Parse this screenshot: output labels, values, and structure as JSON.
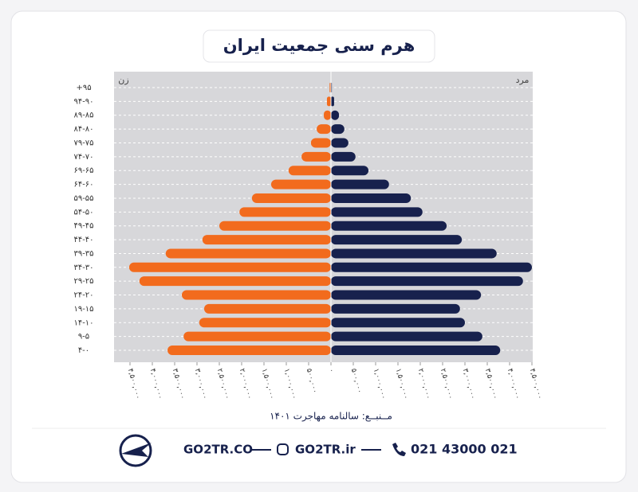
{
  "chart_data": {
    "type": "population-pyramid",
    "title": "هرم سنی جمعیت ایران",
    "categories": [
      "+۹۵",
      "۹۴-۹۰",
      "۸۹-۸۵",
      "۸۴-۸۰",
      "۷۹-۷۵",
      "۷۴-۷۰",
      "۶۹-۶۵",
      "۶۴-۶۰",
      "۵۹-۵۵",
      "۵۴-۵۰",
      "۴۹-۴۵",
      "۴۴-۴۰",
      "۳۹-۳۵",
      "۳۴-۳۰",
      "۲۹-۲۵",
      "۲۴-۲۰",
      "۱۹-۱۵",
      "۱۴-۱۰",
      "۹-۵",
      "۴-۰"
    ],
    "series": [
      {
        "name": "زن",
        "color": "#f26b1d",
        "side": "left",
        "values": [
          30000,
          90000,
          160000,
          320000,
          450000,
          660000,
          950000,
          1340000,
          1770000,
          2050000,
          2500000,
          2880000,
          3700000,
          4520000,
          4290000,
          3340000,
          2840000,
          2950000,
          3300000,
          3660000
        ]
      },
      {
        "name": "مرد",
        "color": "#17214d",
        "side": "right",
        "values": [
          20000,
          70000,
          180000,
          300000,
          390000,
          550000,
          840000,
          1300000,
          1790000,
          2050000,
          2590000,
          2930000,
          3710000,
          4500000,
          4300000,
          3360000,
          2890000,
          3000000,
          3390000,
          3790000
        ]
      }
    ],
    "xlim": [
      0,
      4500000
    ],
    "xticks": [
      {
        "value": 0,
        "label": "۰"
      },
      {
        "value": 500000,
        "label": "۵۰۰,۰۰۰"
      },
      {
        "value": 1000000,
        "label": "۱,۰۰۰,۰۰۰"
      },
      {
        "value": 1500000,
        "label": "۱,۵۰۰,۰۰۰"
      },
      {
        "value": 2000000,
        "label": "۲,۰۰۰,۰۰۰"
      },
      {
        "value": 2500000,
        "label": "۲,۵۰۰,۰۰۰"
      },
      {
        "value": 3000000,
        "label": "۳,۰۰۰,۰۰۰"
      },
      {
        "value": 3500000,
        "label": "۳,۵۰۰,۰۰۰"
      },
      {
        "value": 4000000,
        "label": "۴,۰۰۰,۰۰۰"
      },
      {
        "value": 4500000,
        "label": "۴,۵۰۰,۰۰۰"
      }
    ],
    "grid": true,
    "source": "مــنبــع: سالنامه مهاجرت ۱۴۰۱"
  },
  "footer": {
    "phone": "021 43000 021",
    "instagram": "GO2TR.ir",
    "website": "GO2TR.CO"
  }
}
